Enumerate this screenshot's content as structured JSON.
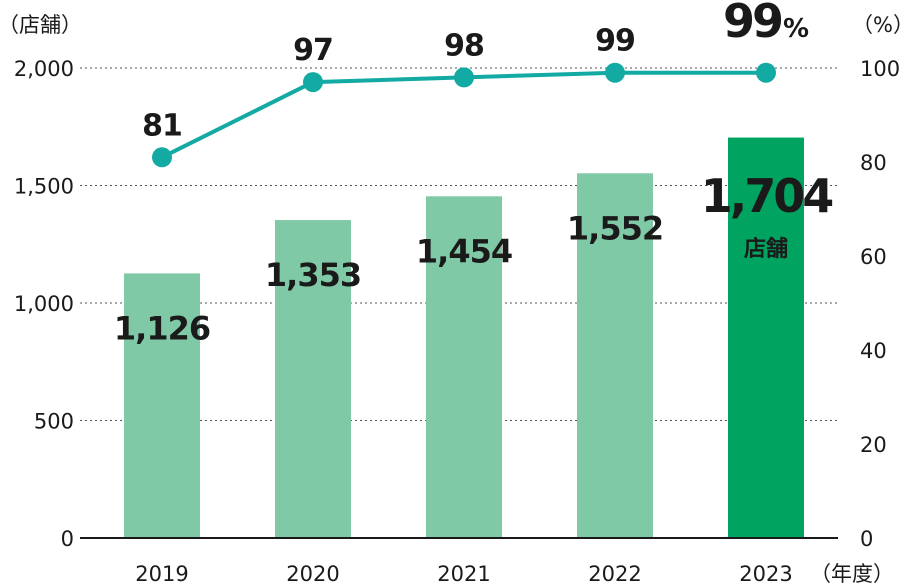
{
  "chart_data": {
    "type": "bar",
    "categories": [
      "2019",
      "2020",
      "2021",
      "2022",
      "2023"
    ],
    "bar_values": [
      1126,
      1353,
      1454,
      1552,
      1704
    ],
    "bar_labels": [
      "1,126",
      "1,353",
      "1,454",
      "1,552",
      "1,704"
    ],
    "line_values": [
      81,
      97,
      98,
      99,
      99
    ],
    "line_labels": [
      "81",
      "97",
      "98",
      "99",
      "99"
    ],
    "highlight_line_suffix": "%",
    "highlight_bar_unit": "店舗",
    "left_axis": {
      "unit_label": "（店舗）",
      "range": [
        0,
        2000
      ],
      "ticks": [
        0,
        500,
        1000,
        1500,
        2000
      ],
      "tick_labels": [
        "0",
        "500",
        "1,000",
        "1,500",
        "2,000"
      ]
    },
    "right_axis": {
      "unit_label": "（%）",
      "range": [
        0,
        100
      ],
      "ticks": [
        0,
        20,
        40,
        60,
        80,
        100
      ],
      "tick_labels": [
        "0",
        "20",
        "40",
        "60",
        "80",
        "100"
      ]
    },
    "x_unit_label": "（年度）",
    "gridlines": "dotted",
    "colors": {
      "bar": "#80c9a6",
      "bar_highlight": "#00a35f",
      "line": "#12aaa3",
      "text": "#1a1a1a"
    }
  }
}
